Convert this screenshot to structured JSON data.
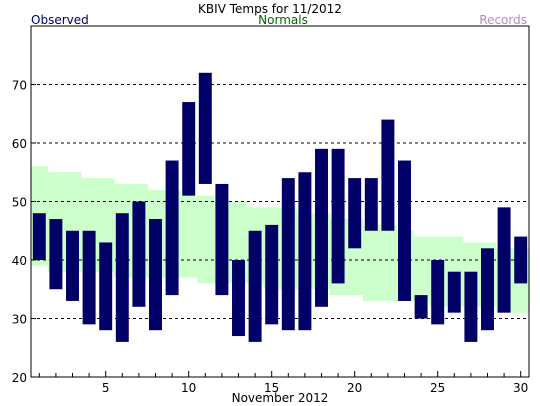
{
  "chart_data": {
    "type": "bar",
    "title": "KBIV Temps for 11/2012",
    "xlabel": "November 2012",
    "ylabel": "",
    "legend": [
      {
        "name": "Observed",
        "color": "#000066",
        "position": "top-left"
      },
      {
        "name": "Normals",
        "color": "#006600",
        "position": "top-center"
      },
      {
        "name": "Records",
        "color": "#bb88cc",
        "position": "top-right"
      }
    ],
    "grid": "horizontal-dashed",
    "ylim": [
      20,
      80
    ],
    "xlim": [
      0.5,
      30.5
    ],
    "y_ticks": [
      20,
      30,
      40,
      50,
      60,
      70
    ],
    "x_ticks": [
      5,
      10,
      15,
      20,
      25,
      30
    ],
    "days": [
      1,
      2,
      3,
      4,
      5,
      6,
      7,
      8,
      9,
      10,
      11,
      12,
      13,
      14,
      15,
      16,
      17,
      18,
      19,
      20,
      21,
      22,
      23,
      24,
      25,
      26,
      27,
      28,
      29,
      30
    ],
    "series": [
      {
        "name": "Observed",
        "color": "#000066",
        "high": [
          48,
          47,
          45,
          45,
          43,
          48,
          50,
          47,
          57,
          67,
          72,
          53,
          40,
          45,
          46,
          54,
          55,
          59,
          59,
          54,
          54,
          64,
          57,
          34,
          40,
          38,
          38,
          42,
          49,
          44
        ],
        "low": [
          40,
          35,
          33,
          29,
          28,
          26,
          32,
          28,
          34,
          51,
          53,
          34,
          27,
          26,
          29,
          28,
          28,
          32,
          36,
          42,
          45,
          45,
          33,
          30,
          29,
          31,
          26,
          28,
          31,
          36
        ]
      },
      {
        "name": "Normals",
        "color": "#ccffcc",
        "high": [
          56,
          55,
          55,
          54,
          54,
          53,
          53,
          52,
          52,
          51,
          51,
          50,
          50,
          49,
          49,
          49,
          48,
          48,
          47,
          47,
          46,
          46,
          45,
          44,
          44,
          44,
          43,
          43,
          42,
          42
        ],
        "low": [
          39,
          38,
          38,
          38,
          38,
          37,
          37,
          37,
          37,
          37,
          36,
          36,
          36,
          36,
          35,
          35,
          35,
          35,
          34,
          34,
          33,
          33,
          33,
          33,
          32,
          32,
          32,
          32,
          31,
          31
        ]
      }
    ]
  }
}
